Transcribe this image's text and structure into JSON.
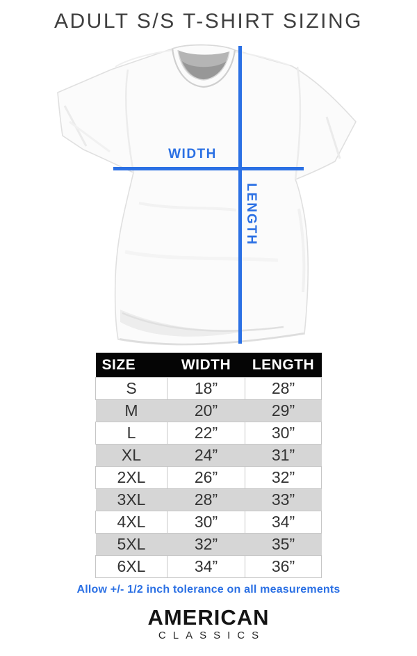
{
  "page_title": "ADULT S/S T-SHIRT SIZING",
  "diagram": {
    "width_label": "WIDTH",
    "length_label": "LENGTH"
  },
  "chart_data": {
    "type": "table",
    "title": "ADULT S/S T-SHIRT SIZING",
    "columns": [
      "SIZE",
      "WIDTH",
      "LENGTH"
    ],
    "rows": [
      [
        "S",
        "18”",
        "28”"
      ],
      [
        "M",
        "20”",
        "29”"
      ],
      [
        "L",
        "22”",
        "30”"
      ],
      [
        "XL",
        "24”",
        "31”"
      ],
      [
        "2XL",
        "26”",
        "32”"
      ],
      [
        "3XL",
        "28”",
        "33”"
      ],
      [
        "4XL",
        "30”",
        "34”"
      ],
      [
        "5XL",
        "32”",
        "35”"
      ],
      [
        "6XL",
        "34”",
        "36”"
      ]
    ],
    "note": "Allow +/- 1/2 inch tolerance on all measurements"
  },
  "brand": {
    "name": "AMERICAN",
    "subname": "CLASSICS"
  },
  "colors": {
    "accent_blue": "#2b70e4",
    "table_header_bg": "#050505",
    "row_alt_gray": "#d6d6d6",
    "row_border_gray": "#c6c6c6"
  }
}
